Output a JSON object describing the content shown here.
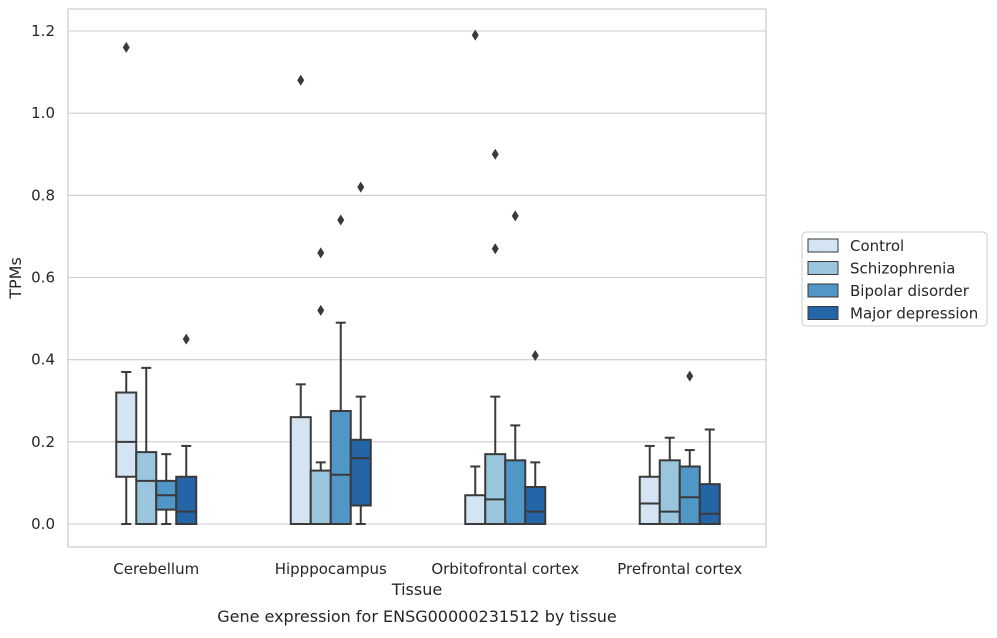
{
  "chart_data": {
    "type": "box",
    "title": "",
    "xlabel": "Tissue",
    "ylabel": "TPMs",
    "caption": "Gene expression for ENSG00000231512 by tissue",
    "ylim": [
      -0.06,
      1.25
    ],
    "yticks": [
      0.0,
      0.2,
      0.4,
      0.6,
      0.8,
      1.0,
      1.2
    ],
    "ytick_labels": [
      "0.0",
      "0.2",
      "0.4",
      "0.6",
      "0.8",
      "1.0",
      "1.2"
    ],
    "grid": "horizontal",
    "legend_position": "right",
    "categories": [
      "Cerebellum",
      "Hipppocampus",
      "Orbitofrontal cortex",
      "Prefrontal cortex"
    ],
    "series": [
      {
        "name": "Control",
        "color": "#d4e4f2",
        "boxes": [
          {
            "whislo": 0.0,
            "q1": 0.115,
            "med": 0.2,
            "q3": 0.32,
            "whishi": 0.37,
            "fliers": [
              1.16
            ]
          },
          {
            "whislo": 0.0,
            "q1": 0.0,
            "med": 0.0,
            "q3": 0.26,
            "whishi": 0.34,
            "fliers": [
              1.08
            ]
          },
          {
            "whislo": 0.0,
            "q1": 0.0,
            "med": 0.0,
            "q3": 0.07,
            "whishi": 0.14,
            "fliers": [
              1.19
            ]
          },
          {
            "whislo": 0.0,
            "q1": 0.0,
            "med": 0.05,
            "q3": 0.115,
            "whishi": 0.19,
            "fliers": []
          }
        ]
      },
      {
        "name": "Schizophrenia",
        "color": "#9ac6dd",
        "boxes": [
          {
            "whislo": 0.0,
            "q1": 0.0,
            "med": 0.105,
            "q3": 0.175,
            "whishi": 0.38,
            "fliers": []
          },
          {
            "whislo": 0.0,
            "q1": 0.0,
            "med": 0.0,
            "q3": 0.13,
            "whishi": 0.15,
            "fliers": [
              0.52,
              0.66
            ]
          },
          {
            "whislo": 0.0,
            "q1": 0.0,
            "med": 0.06,
            "q3": 0.17,
            "whishi": 0.31,
            "fliers": [
              0.67,
              0.9
            ]
          },
          {
            "whislo": 0.0,
            "q1": 0.0,
            "med": 0.03,
            "q3": 0.155,
            "whishi": 0.21,
            "fliers": []
          }
        ]
      },
      {
        "name": "Bipolar disorder",
        "color": "#5096c6",
        "boxes": [
          {
            "whislo": 0.0,
            "q1": 0.035,
            "med": 0.07,
            "q3": 0.105,
            "whishi": 0.17,
            "fliers": []
          },
          {
            "whislo": 0.0,
            "q1": 0.0,
            "med": 0.12,
            "q3": 0.275,
            "whishi": 0.49,
            "fliers": [
              0.74
            ]
          },
          {
            "whislo": 0.0,
            "q1": 0.0,
            "med": 0.0,
            "q3": 0.155,
            "whishi": 0.24,
            "fliers": [
              0.75
            ]
          },
          {
            "whislo": 0.0,
            "q1": 0.0,
            "med": 0.065,
            "q3": 0.14,
            "whishi": 0.18,
            "fliers": [
              0.36
            ]
          }
        ]
      },
      {
        "name": "Major depression",
        "color": "#2465a8",
        "boxes": [
          {
            "whislo": 0.0,
            "q1": 0.0,
            "med": 0.03,
            "q3": 0.115,
            "whishi": 0.19,
            "fliers": [
              0.45
            ]
          },
          {
            "whislo": 0.0,
            "q1": 0.045,
            "med": 0.16,
            "q3": 0.205,
            "whishi": 0.31,
            "fliers": [
              0.82
            ]
          },
          {
            "whislo": 0.0,
            "q1": 0.0,
            "med": 0.03,
            "q3": 0.09,
            "whishi": 0.15,
            "fliers": [
              0.41
            ]
          },
          {
            "whislo": 0.0,
            "q1": 0.0,
            "med": 0.025,
            "q3": 0.097,
            "whishi": 0.23,
            "fliers": []
          }
        ]
      }
    ]
  }
}
